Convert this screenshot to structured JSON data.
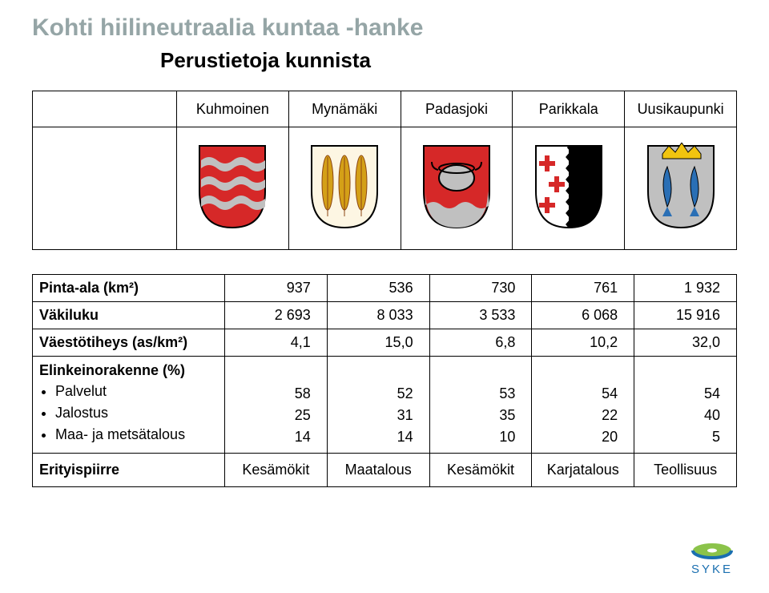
{
  "title": "Kohti hiilineutraalia kuntaa -hanke",
  "subtitle": "Perustietoja kunnista",
  "municipalities": [
    "Kuhmoinen",
    "Mynämäki",
    "Padasjoki",
    "Parikkala",
    "Uusikaupunki"
  ],
  "rows": {
    "area": {
      "label": "Pinta-ala (km²)",
      "bold": true,
      "vals": [
        "937",
        "536",
        "730",
        "761",
        "1 932"
      ]
    },
    "pop": {
      "label": "Väkiluku",
      "bold": true,
      "vals": [
        "2 693",
        "8 033",
        "3 533",
        "6 068",
        "15 916"
      ]
    },
    "density": {
      "label": "Väestötiheys (as/km²)",
      "bold": true,
      "vals": [
        "4,1",
        "15,0",
        "6,8",
        "10,2",
        "32,0"
      ]
    },
    "struct": {
      "label": "Elinkeinorakenne (%)",
      "subs": [
        "Palvelut",
        "Jalostus",
        "Maa- ja metsätalous"
      ],
      "cols": [
        [
          "58",
          "25",
          "14"
        ],
        [
          "52",
          "31",
          "14"
        ],
        [
          "53",
          "35",
          "10"
        ],
        [
          "54",
          "22",
          "20"
        ],
        [
          "54",
          "40",
          "5"
        ]
      ]
    },
    "special": {
      "label": "Erityispiirre",
      "bold": true,
      "vals": [
        "Kesämökit",
        "Maatalous",
        "Kesämökit",
        "Karjatalous",
        "Teollisuus"
      ]
    }
  },
  "crest": {
    "w": 90,
    "h": 110,
    "bg_red": "#d62828",
    "silver": "#c0c0c0",
    "gold": "#f1c40f",
    "black": "#000000",
    "blue": "#2a6fb5",
    "brown": "#8b4513",
    "white": "#ffffff",
    "feather": "#d4a017"
  },
  "logo": {
    "green": "#8bc34a",
    "blue": "#1a6fb0",
    "text": "SYKE",
    "text_color": "#1a6fb0"
  }
}
